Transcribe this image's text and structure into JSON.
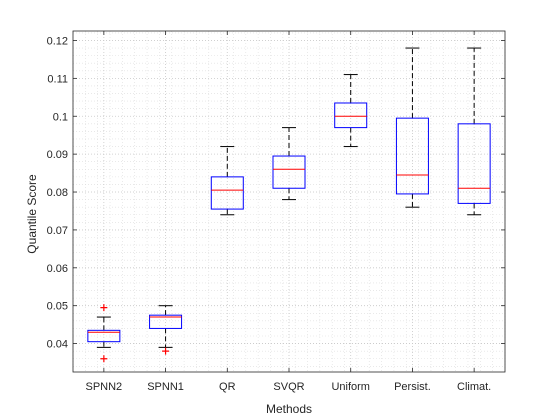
{
  "chart_data": {
    "type": "box",
    "title": "",
    "xlabel": "Methods",
    "ylabel": "Quantile Score",
    "ylim": [
      0.0325,
      0.1225
    ],
    "yticks": [
      0.04,
      0.05,
      0.06,
      0.07,
      0.08,
      0.09,
      0.1,
      0.11,
      0.12
    ],
    "ytick_labels": [
      "0.04",
      "0.05",
      "0.06",
      "0.07",
      "0.08",
      "0.09",
      "0.1",
      "0.11",
      "0.12"
    ],
    "grid": "major and minor, dotted",
    "categories": [
      "SPNN2",
      "SPNN1",
      "QR",
      "SVQR",
      "Uniform",
      "Persist.",
      "Climat."
    ],
    "boxes": [
      {
        "category": "SPNN2",
        "whisker_low": 0.039,
        "q1": 0.0405,
        "median": 0.043,
        "q3": 0.0435,
        "whisker_high": 0.047,
        "outliers": [
          0.036,
          0.0495
        ]
      },
      {
        "category": "SPNN1",
        "whisker_low": 0.039,
        "q1": 0.044,
        "median": 0.047,
        "q3": 0.0475,
        "whisker_high": 0.05,
        "outliers": [
          0.038
        ]
      },
      {
        "category": "QR",
        "whisker_low": 0.074,
        "q1": 0.0755,
        "median": 0.0805,
        "q3": 0.084,
        "whisker_high": 0.092,
        "outliers": []
      },
      {
        "category": "SVQR",
        "whisker_low": 0.078,
        "q1": 0.081,
        "median": 0.086,
        "q3": 0.0895,
        "whisker_high": 0.097,
        "outliers": []
      },
      {
        "category": "Uniform",
        "whisker_low": 0.092,
        "q1": 0.097,
        "median": 0.1,
        "q3": 0.1035,
        "whisker_high": 0.111,
        "outliers": []
      },
      {
        "category": "Persist.",
        "whisker_low": 0.076,
        "q1": 0.0795,
        "median": 0.0845,
        "q3": 0.0995,
        "whisker_high": 0.118,
        "outliers": []
      },
      {
        "category": "Climat.",
        "whisker_low": 0.074,
        "q1": 0.077,
        "median": 0.081,
        "q3": 0.098,
        "whisker_high": 0.118,
        "outliers": []
      }
    ],
    "colors": {
      "box": "#0000ff",
      "median": "#ff0000",
      "whisker": "#000000",
      "outlier": "#ff0000",
      "axis": "#262626",
      "grid": "#c8c8c8"
    }
  }
}
